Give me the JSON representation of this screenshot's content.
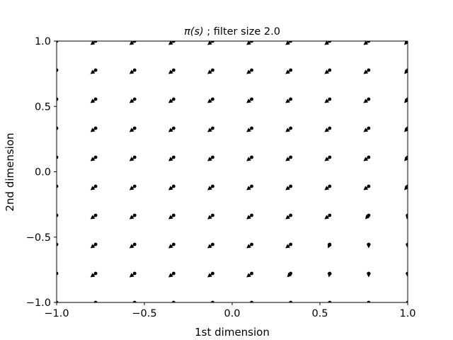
{
  "chart_data": {
    "type": "quiver",
    "title_prefix": "π(s)",
    "title_suffix": " ; filter size 2.0",
    "xlabel": "1st dimension",
    "ylabel": "2nd dimension",
    "xlim": [
      -1.0,
      1.0
    ],
    "ylim": [
      -1.0,
      1.0
    ],
    "xticks": [
      -1.0,
      -0.5,
      0.0,
      0.5,
      1.0
    ],
    "xtick_labels": [
      "−1.0",
      "−0.5",
      "0.0",
      "0.5",
      "1.0"
    ],
    "yticks": [
      -1.0,
      -0.5,
      0.0,
      0.5,
      1.0
    ],
    "ytick_labels": [
      "−1.0",
      "−0.5",
      "0.0",
      "0.5",
      "1.0"
    ],
    "grid": false,
    "arrow_color": "#000000",
    "grid_points": {
      "x": [
        -1.0,
        -0.7778,
        -0.5556,
        -0.3333,
        -0.1111,
        0.1111,
        0.3333,
        0.5556,
        0.7778,
        1.0
      ],
      "y": [
        -1.0,
        -0.7778,
        -0.5556,
        -0.3333,
        -0.1111,
        0.1111,
        0.3333,
        0.5556,
        0.7778,
        1.0
      ]
    },
    "vector_note_rows_bottom_to_top": "row i corresponds to y[i]; column j to x[j]",
    "u": [
      [
        -0.03,
        -0.03,
        -0.03,
        -0.03,
        -0.03,
        -0.03,
        -0.03,
        -0.03,
        -0.03,
        -0.03
      ],
      [
        -0.03,
        -0.03,
        -0.03,
        -0.03,
        -0.03,
        -0.03,
        -0.02,
        -0.005,
        0.0,
        0.0
      ],
      [
        -0.03,
        -0.03,
        -0.03,
        -0.03,
        -0.03,
        -0.03,
        -0.03,
        -0.01,
        0.0,
        0.0
      ],
      [
        -0.03,
        -0.03,
        -0.03,
        -0.03,
        -0.03,
        -0.03,
        -0.03,
        -0.03,
        -0.02,
        -0.005
      ],
      [
        -0.03,
        -0.03,
        -0.03,
        -0.03,
        -0.03,
        -0.03,
        -0.03,
        -0.03,
        -0.03,
        -0.02
      ],
      [
        -0.03,
        -0.03,
        -0.03,
        -0.03,
        -0.03,
        -0.03,
        -0.03,
        -0.03,
        -0.03,
        -0.02
      ],
      [
        -0.03,
        -0.03,
        -0.03,
        -0.03,
        -0.03,
        -0.03,
        -0.03,
        -0.03,
        -0.03,
        -0.02
      ],
      [
        -0.03,
        -0.03,
        -0.03,
        -0.03,
        -0.03,
        -0.03,
        -0.03,
        -0.03,
        -0.03,
        -0.02
      ],
      [
        -0.03,
        -0.03,
        -0.03,
        -0.03,
        -0.03,
        -0.03,
        -0.03,
        -0.03,
        -0.03,
        -0.02
      ],
      [
        -0.03,
        -0.03,
        -0.03,
        -0.03,
        -0.03,
        -0.03,
        -0.03,
        -0.03,
        -0.03,
        -0.02
      ]
    ],
    "v": [
      [
        -0.03,
        -0.03,
        -0.03,
        -0.03,
        -0.03,
        -0.03,
        -0.03,
        -0.03,
        -0.03,
        -0.03
      ],
      [
        -0.03,
        -0.03,
        -0.03,
        -0.03,
        -0.03,
        -0.03,
        -0.03,
        -0.03,
        -0.03,
        -0.03
      ],
      [
        -0.03,
        -0.03,
        -0.03,
        -0.03,
        -0.03,
        -0.03,
        -0.03,
        -0.03,
        -0.03,
        -0.03
      ],
      [
        -0.03,
        -0.03,
        -0.03,
        -0.03,
        -0.03,
        -0.03,
        -0.03,
        -0.03,
        -0.03,
        -0.03
      ],
      [
        -0.03,
        -0.03,
        -0.03,
        -0.03,
        -0.03,
        -0.03,
        -0.03,
        -0.03,
        -0.03,
        -0.03
      ],
      [
        -0.03,
        -0.03,
        -0.03,
        -0.03,
        -0.03,
        -0.03,
        -0.03,
        -0.03,
        -0.03,
        -0.03
      ],
      [
        -0.03,
        -0.03,
        -0.03,
        -0.03,
        -0.03,
        -0.03,
        -0.03,
        -0.03,
        -0.03,
        -0.03
      ],
      [
        -0.03,
        -0.03,
        -0.03,
        -0.03,
        -0.03,
        -0.03,
        -0.03,
        -0.03,
        -0.03,
        -0.03
      ],
      [
        -0.03,
        -0.03,
        -0.03,
        -0.03,
        -0.03,
        -0.03,
        -0.03,
        -0.03,
        -0.03,
        -0.03
      ],
      [
        -0.03,
        -0.03,
        -0.03,
        -0.03,
        -0.03,
        -0.03,
        -0.03,
        -0.03,
        -0.03,
        -0.03
      ]
    ]
  }
}
